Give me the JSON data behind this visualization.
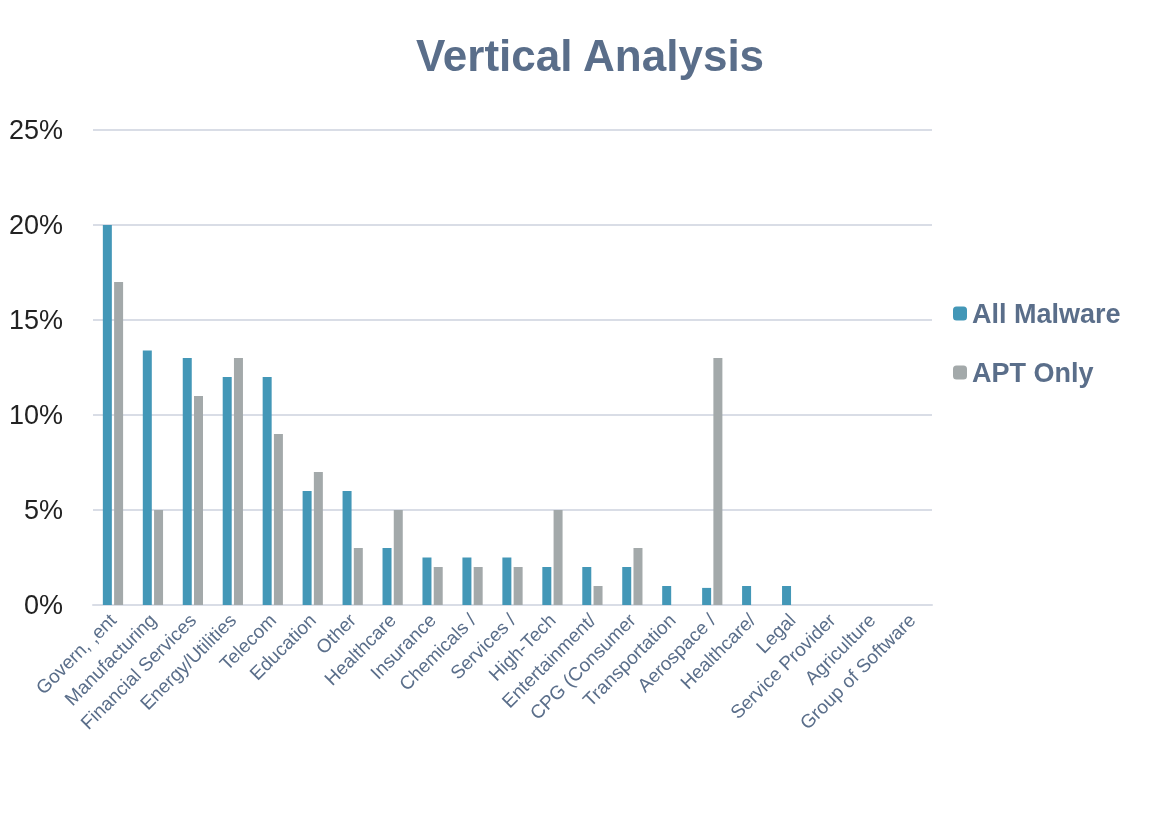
{
  "chart_data": {
    "type": "bar",
    "title": "Vertical Analysis",
    "categories": [
      "Govern, ,ent",
      "Manufacturing",
      "Financial Services",
      "Energy/Utilities",
      "Telecom",
      "Education",
      "Other",
      "Healthcare",
      "Insurance",
      "Chemicals /",
      "Services /",
      "High-Tech",
      "Entertainment/",
      "CPG (Consumer",
      "Transportation",
      "Aerospace /",
      "Healthcare/",
      "Legal",
      "Service Provider",
      "Agriculture",
      "Group of Software"
    ],
    "series": [
      {
        "name": "All Malware",
        "color": "#4397b7",
        "values": [
          20,
          13.4,
          13,
          12,
          12,
          6,
          6,
          3,
          2.5,
          2.5,
          2.5,
          2,
          2,
          2,
          1,
          0.9,
          1,
          1,
          0,
          0,
          0
        ]
      },
      {
        "name": "APT Only",
        "color": "#a3a9aa",
        "values": [
          17,
          5,
          11,
          13,
          9,
          7,
          3,
          5,
          2,
          2,
          2,
          5,
          1,
          3,
          0,
          13,
          0,
          0,
          0,
          0,
          0
        ]
      }
    ],
    "ylim": [
      0,
      25
    ],
    "yticks": [
      {
        "value": 0,
        "label": "0%"
      },
      {
        "value": 5,
        "label": "5%"
      },
      {
        "value": 10,
        "label": "10%"
      },
      {
        "value": 15,
        "label": "15%"
      },
      {
        "value": 20,
        "label": "20%"
      },
      {
        "value": 25,
        "label": "25%"
      }
    ],
    "grid": "y",
    "legend": "right"
  }
}
